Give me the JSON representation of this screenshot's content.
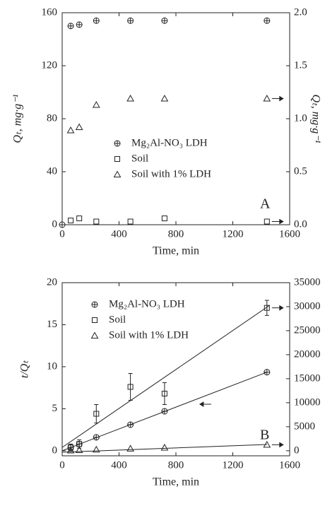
{
  "chart_data": [
    {
      "type": "scatter",
      "panel_label": "A",
      "xlabel": "Time, min",
      "ylabel": "Qₜ, mg·g⁻¹",
      "y2label": "Qₜ, mg·g⁻¹",
      "x": [
        0,
        60,
        120,
        240,
        480,
        720,
        1440
      ],
      "xlim": [
        0,
        1600
      ],
      "xticks": [
        0,
        400,
        800,
        1200,
        1600
      ],
      "ylim": [
        0,
        160
      ],
      "yticks": [
        0,
        40,
        80,
        120,
        160
      ],
      "y2lim": [
        0,
        2
      ],
      "y2ticks": [
        {
          "value": 0,
          "label": "0.0"
        },
        0.5,
        {
          "value": 1,
          "label": "1.0"
        },
        1.5,
        {
          "value": 2,
          "label": "2.0"
        }
      ],
      "legend": "center",
      "series": [
        {
          "name": "Mg₂Al-NO₃ LDH",
          "marker": "circle",
          "color": "#222",
          "values": [
            0,
            150,
            151,
            154,
            154,
            154,
            154
          ]
        },
        {
          "name": "Soil",
          "marker": "square",
          "color": "#222",
          "axis": "y2",
          "arrow": "right",
          "values": [
            null,
            0.04,
            0.06,
            0.03,
            0.03,
            0.06,
            0.03
          ]
        },
        {
          "name": "Soil with 1% LDH",
          "marker": "triangle",
          "color": "#222",
          "axis": "y2",
          "arrow": "right",
          "values": [
            null,
            0.89,
            0.92,
            1.13,
            1.19,
            1.19,
            1.19
          ]
        }
      ]
    },
    {
      "type": "scatter",
      "panel_label": "B",
      "xlabel": "Time, min",
      "ylabel": "t/Qₜ",
      "x": [
        60,
        120,
        240,
        480,
        720,
        1440
      ],
      "xlim": [
        0,
        1600
      ],
      "xticks": [
        0,
        400,
        800,
        1200,
        1600
      ],
      "ylim": [
        -0.6,
        20
      ],
      "yticks": [
        0,
        5,
        10,
        15,
        20
      ],
      "y2lim": [
        -1050,
        35000
      ],
      "y2ticks": [
        0,
        5000,
        10000,
        15000,
        20000,
        25000,
        30000,
        35000
      ],
      "legend": "upper left",
      "series": [
        {
          "name": "Mg₂Al-NO₃ LDH",
          "marker": "circle",
          "color": "#222",
          "arrow": "left",
          "values": [
            0.4,
            0.8,
            1.6,
            3.1,
            4.7,
            9.35
          ],
          "fit_x": [
            0,
            1440
          ],
          "fit_values": [
            0,
            9.35
          ]
        },
        {
          "name": "Soil",
          "marker": "square",
          "color": "#222",
          "axis": "y2",
          "arrow": "right",
          "values": [
            700,
            1400,
            7700,
            13300,
            11900,
            29750
          ],
          "errors": [
            700,
            875,
            1925,
            2800,
            2275,
            1575
          ],
          "fit_x": [
            0,
            1460
          ],
          "fit_values": [
            700,
            30300
          ]
        },
        {
          "name": "Soil with 1% LDH",
          "marker": "triangle",
          "color": "#222",
          "axis": "y2",
          "arrow": "right",
          "values": [
            60,
            120,
            230,
            440,
            650,
            1250
          ],
          "fit_x": [
            0,
            1440
          ],
          "fit_values": [
            -300,
            1300
          ]
        }
      ]
    }
  ]
}
